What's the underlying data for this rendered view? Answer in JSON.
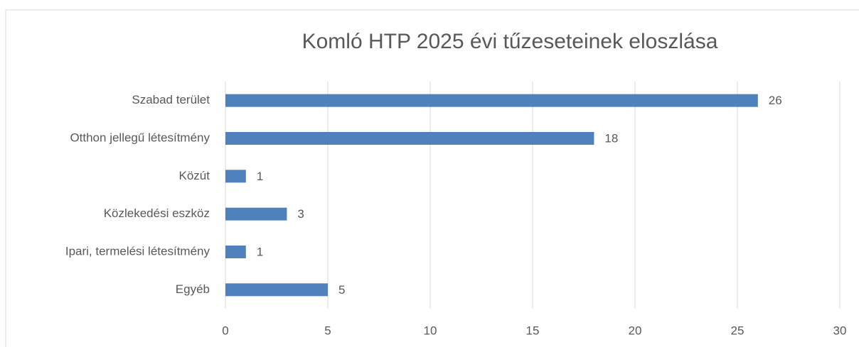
{
  "chart_data": {
    "type": "bar",
    "orientation": "horizontal",
    "title": "Komló HTP 2025 évi tűzeseteinek eloszlása",
    "categories": [
      "Szabad terület",
      "Otthon jellegű létesítmény",
      "Közút",
      "Közlekedési eszköz",
      "Ipari, termelési létesítmény",
      "Egyéb"
    ],
    "values": [
      26,
      18,
      1,
      3,
      1,
      5
    ],
    "color": "#4f81bd",
    "xlim": [
      0,
      30
    ],
    "xticks": [
      0,
      5,
      10,
      15,
      20,
      25,
      30
    ],
    "grid": true
  }
}
